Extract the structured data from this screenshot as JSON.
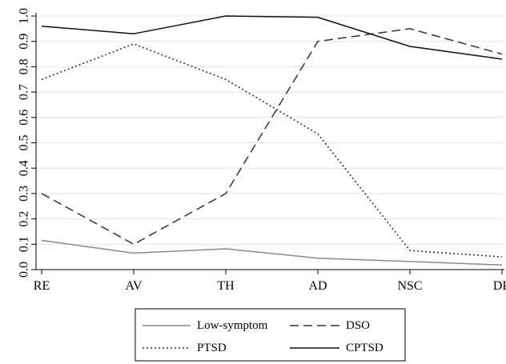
{
  "chart_data": {
    "type": "line",
    "categories": [
      "RE",
      "AV",
      "TH",
      "AD",
      "NSC",
      "DR"
    ],
    "ylim": [
      0,
      1.0
    ],
    "yticks": [
      "0.0",
      "0.1",
      "0.2",
      "0.3",
      "0.4",
      "0.5",
      "0.6",
      "0.7",
      "0.8",
      "0.9",
      "1.0"
    ],
    "grid": true,
    "legend_position": "bottom",
    "series": [
      {
        "name": "Low-symptom",
        "style": "solid",
        "color": "#8a8a8a",
        "values": [
          0.115,
          0.065,
          0.082,
          0.045,
          0.032,
          0.018
        ]
      },
      {
        "name": "DSO",
        "style": "dashed",
        "color": "#333333",
        "values": [
          0.3,
          0.1,
          0.3,
          0.9,
          0.95,
          0.85
        ]
      },
      {
        "name": "PTSD",
        "style": "dotted",
        "color": "#333333",
        "values": [
          0.75,
          0.89,
          0.75,
          0.535,
          0.075,
          0.05
        ]
      },
      {
        "name": "CPTSD",
        "style": "solid",
        "color": "#111111",
        "values": [
          0.96,
          0.93,
          1.0,
          0.995,
          0.88,
          0.83
        ]
      }
    ]
  }
}
